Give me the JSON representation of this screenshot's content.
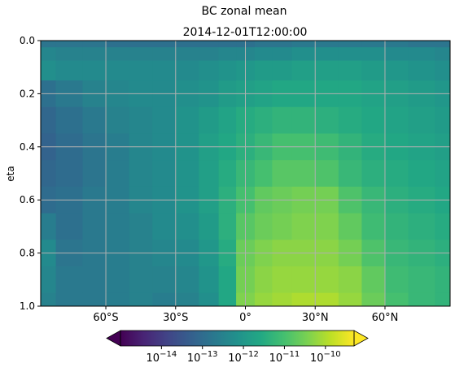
{
  "chart_data": {
    "type": "heatmap",
    "suptitle": "BC zonal mean",
    "title": "2014-12-01T12:00:00",
    "xlabel": "",
    "ylabel": "eta",
    "x_ticks": [
      {
        "value": -60,
        "label": "60°S"
      },
      {
        "value": -30,
        "label": "30°S"
      },
      {
        "value": 0,
        "label": "0°"
      },
      {
        "value": 30,
        "label": "30°N"
      },
      {
        "value": 60,
        "label": "60°N"
      }
    ],
    "y_ticks": [
      {
        "value": 0.0,
        "label": "0.0"
      },
      {
        "value": 0.2,
        "label": "0.2"
      },
      {
        "value": 0.4,
        "label": "0.4"
      },
      {
        "value": 0.6,
        "label": "0.6"
      },
      {
        "value": 0.8,
        "label": "0.8"
      },
      {
        "value": 1.0,
        "label": "1.0"
      }
    ],
    "xlim": [
      -88,
      88
    ],
    "ylim": [
      1.0,
      0.0
    ],
    "grid": true,
    "colorbar": {
      "orientation": "horizontal",
      "placement": "bottom",
      "scale": "log",
      "range": [
        1e-15,
        5e-10
      ],
      "extend": "both",
      "colormap": [
        "#440154",
        "#482475",
        "#414487",
        "#355f8d",
        "#2a788e",
        "#21918c",
        "#22a884",
        "#44bf70",
        "#7ad151",
        "#bddf26",
        "#fde725"
      ],
      "ticks": [
        {
          "exp": -14,
          "base": "10",
          "sup": "−14"
        },
        {
          "exp": -13,
          "base": "10",
          "sup": "−13"
        },
        {
          "exp": -12,
          "base": "10",
          "sup": "−12"
        },
        {
          "exp": -11,
          "base": "10",
          "sup": "−11"
        },
        {
          "exp": -10,
          "base": "10",
          "sup": "−10"
        }
      ]
    },
    "lat": [
      -88,
      -75,
      -65,
      -55,
      -45,
      -35,
      -25,
      -15,
      -8,
      0,
      8,
      15,
      25,
      35,
      45,
      55,
      65,
      75,
      88
    ],
    "eta": [
      0.0,
      0.05,
      0.1,
      0.2,
      0.3,
      0.4,
      0.5,
      0.6,
      0.7,
      0.8,
      0.9,
      1.0
    ],
    "log10_values": [
      [
        -12.8,
        -12.8,
        -12.8,
        -12.9,
        -12.9,
        -12.9,
        -12.9,
        -12.9,
        -12.9,
        -12.9,
        -12.8,
        -12.8,
        -12.7,
        -12.7,
        -12.7,
        -12.7,
        -12.7,
        -12.8,
        -12.8
      ],
      [
        -12.4,
        -12.5,
        -12.5,
        -12.5,
        -12.5,
        -12.5,
        -12.5,
        -12.5,
        -12.4,
        -12.4,
        -12.3,
        -12.3,
        -12.2,
        -12.2,
        -12.2,
        -12.2,
        -12.3,
        -12.3,
        -12.4
      ],
      [
        -12.2,
        -12.3,
        -12.3,
        -12.3,
        -12.3,
        -12.3,
        -12.3,
        -12.2,
        -12.1,
        -12.0,
        -11.9,
        -11.9,
        -11.8,
        -11.8,
        -11.8,
        -11.9,
        -12.0,
        -12.1,
        -12.2
      ],
      [
        -12.9,
        -12.7,
        -12.5,
        -12.4,
        -12.3,
        -12.3,
        -12.2,
        -12.1,
        -11.9,
        -11.8,
        -11.7,
        -11.6,
        -11.6,
        -11.6,
        -11.6,
        -11.7,
        -11.8,
        -11.9,
        -12.0
      ],
      [
        -13.1,
        -12.9,
        -12.7,
        -12.5,
        -12.4,
        -12.3,
        -12.1,
        -11.9,
        -11.7,
        -11.5,
        -11.4,
        -11.3,
        -11.3,
        -11.4,
        -11.5,
        -11.6,
        -11.7,
        -11.8,
        -11.9
      ],
      [
        -13.2,
        -13.0,
        -12.8,
        -12.6,
        -12.4,
        -12.3,
        -12.1,
        -11.8,
        -11.6,
        -11.4,
        -11.2,
        -11.0,
        -11.0,
        -11.1,
        -11.3,
        -11.5,
        -11.6,
        -11.7,
        -11.8
      ],
      [
        -13.1,
        -13.0,
        -12.8,
        -12.6,
        -12.4,
        -12.3,
        -12.1,
        -11.8,
        -11.5,
        -11.2,
        -11.0,
        -10.8,
        -10.8,
        -10.9,
        -11.2,
        -11.4,
        -11.5,
        -11.6,
        -11.7
      ],
      [
        -13.0,
        -12.9,
        -12.7,
        -12.6,
        -12.4,
        -12.3,
        -12.1,
        -11.8,
        -11.4,
        -11.0,
        -10.7,
        -10.6,
        -10.5,
        -10.5,
        -10.9,
        -11.2,
        -11.4,
        -11.5,
        -11.6
      ],
      [
        -12.6,
        -12.9,
        -12.7,
        -12.6,
        -12.5,
        -12.3,
        -12.2,
        -11.9,
        -11.4,
        -10.8,
        -10.6,
        -10.5,
        -10.4,
        -10.4,
        -10.7,
        -11.1,
        -11.3,
        -11.4,
        -11.5
      ],
      [
        -12.3,
        -12.8,
        -12.7,
        -12.6,
        -12.5,
        -12.4,
        -12.3,
        -12.0,
        -11.5,
        -10.6,
        -10.4,
        -10.3,
        -10.3,
        -10.3,
        -10.5,
        -10.9,
        -11.2,
        -11.3,
        -11.4
      ],
      [
        -12.4,
        -12.7,
        -12.7,
        -12.6,
        -12.5,
        -12.5,
        -12.4,
        -12.1,
        -11.6,
        -10.5,
        -10.3,
        -10.2,
        -10.2,
        -10.2,
        -10.3,
        -10.7,
        -11.1,
        -11.2,
        -11.3
      ],
      [
        -12.5,
        -12.7,
        -12.7,
        -12.6,
        -12.5,
        -12.6,
        -12.5,
        -12.2,
        -11.6,
        -10.4,
        -10.2,
        -10.1,
        -10.0,
        -10.0,
        -10.2,
        -10.6,
        -11.0,
        -11.2,
        -11.3
      ]
    ]
  }
}
